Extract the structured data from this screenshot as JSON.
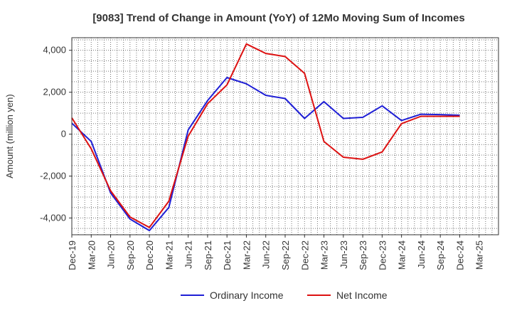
{
  "chart_data": {
    "type": "line",
    "title": "[9083]  Trend of Change in Amount (YoY) of 12Mo Moving Sum of Incomes",
    "xlabel": "",
    "ylabel": "Amount (million yen)",
    "ylim": [
      -4800,
      4600
    ],
    "yticks": [
      4000,
      2000,
      0,
      -2000,
      -4000
    ],
    "ytick_labels": [
      "4,000",
      "2,000",
      "0",
      "-2,000",
      "-4,000"
    ],
    "categories": [
      "Dec-19",
      "Mar-20",
      "Jun-20",
      "Sep-20",
      "Dec-20",
      "Mar-21",
      "Jun-21",
      "Sep-21",
      "Dec-21",
      "Mar-22",
      "Jun-22",
      "Sep-22",
      "Dec-22",
      "Mar-23",
      "Jun-23",
      "Sep-23",
      "Dec-23",
      "Mar-24",
      "Jun-24",
      "Sep-24",
      "Dec-24",
      "Mar-25"
    ],
    "series": [
      {
        "name": "Ordinary Income",
        "color": "#1f1fd6",
        "values": [
          520,
          -350,
          -2800,
          -4050,
          -4600,
          -3500,
          200,
          1600,
          2700,
          2400,
          1850,
          1700,
          750,
          1550,
          750,
          800,
          1350,
          650,
          950,
          930,
          900,
          null
        ]
      },
      {
        "name": "Net Income",
        "color": "#dd1111",
        "values": [
          780,
          -700,
          -2700,
          -3950,
          -4450,
          -3200,
          -100,
          1450,
          2350,
          4300,
          3850,
          3700,
          2900,
          -350,
          -1100,
          -1200,
          -850,
          500,
          850,
          850,
          850,
          null
        ]
      }
    ],
    "legend": {
      "position": "bottom-center",
      "items": [
        "Ordinary Income",
        "Net Income"
      ]
    },
    "grid": true
  }
}
